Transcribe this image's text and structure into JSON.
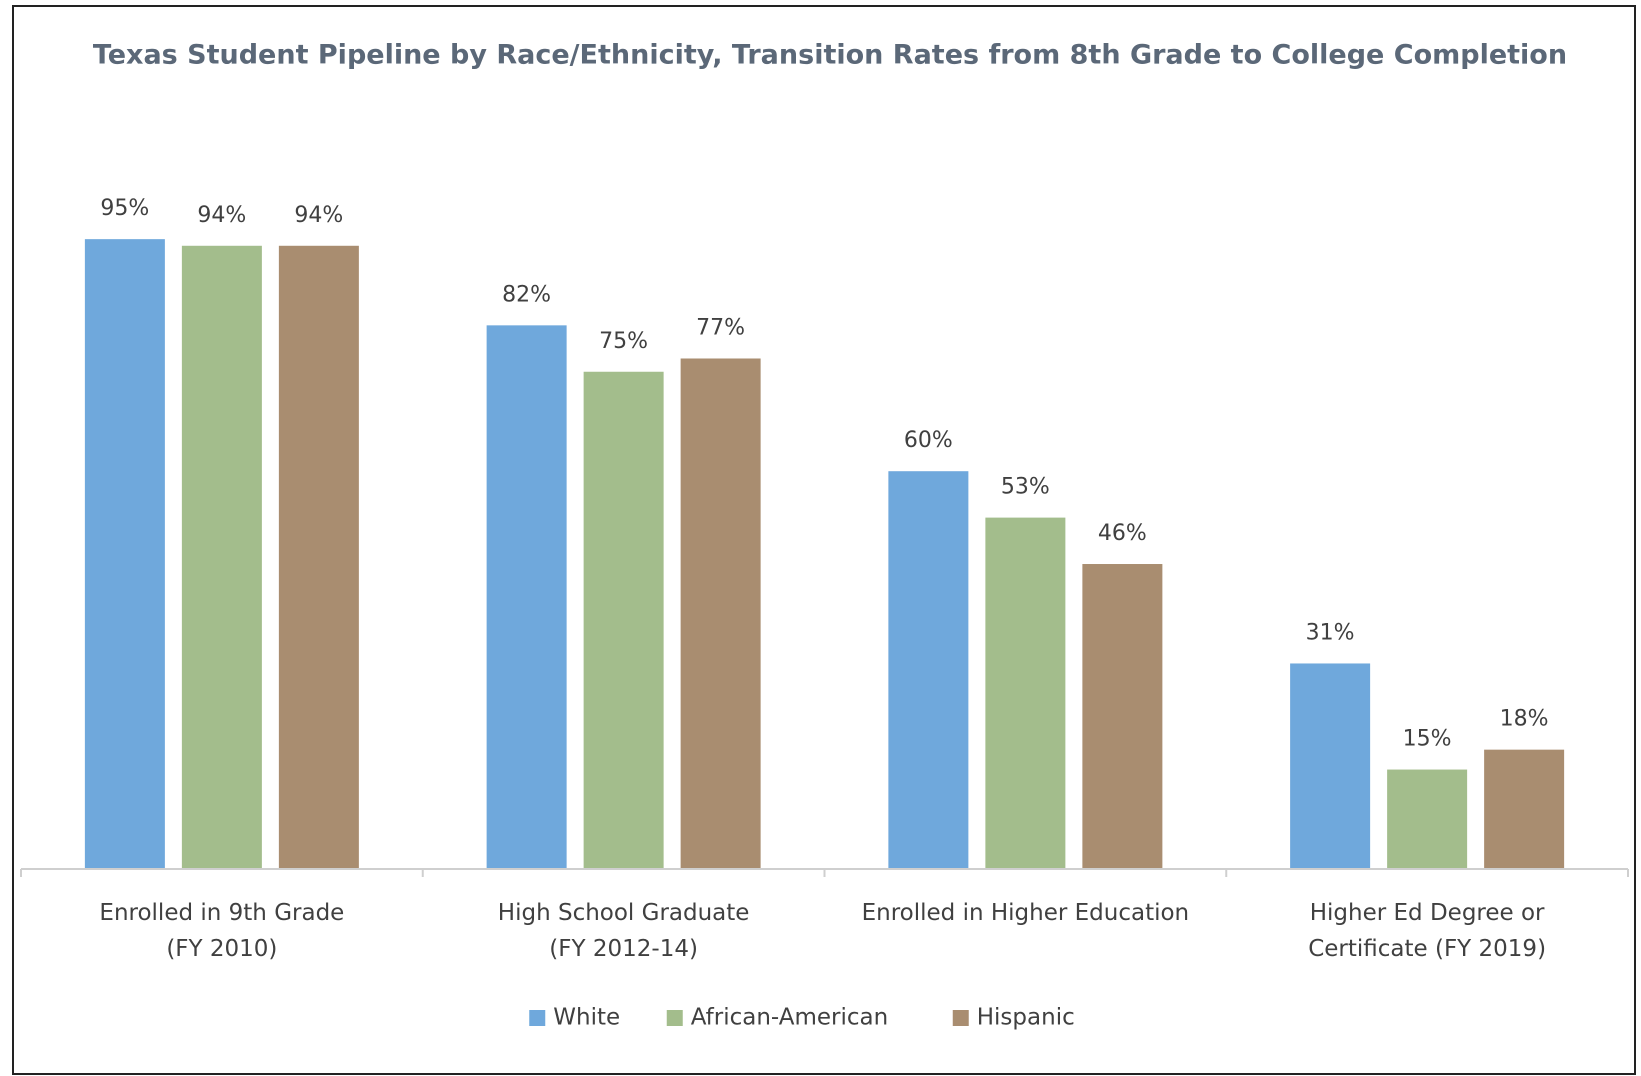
{
  "chart_data": {
    "type": "bar",
    "title": "Texas Student Pipeline by Race/Ethnicity, Transition Rates from 8th Grade to College Completion",
    "categories": [
      [
        "Enrolled in 9th Grade",
        "(FY 2010)"
      ],
      [
        "High School Graduate",
        "(FY 2012-14)"
      ],
      [
        "Enrolled in Higher Education"
      ],
      [
        "Higher Ed Degree or",
        "Certificate (FY 2019)"
      ]
    ],
    "series": [
      {
        "name": "White",
        "color": "#6fa8dc",
        "values": [
          95,
          82,
          60,
          31
        ],
        "value_labels": [
          "95%",
          "82%",
          "60%",
          "31%"
        ]
      },
      {
        "name": "African-American",
        "color": "#a3bd8c",
        "values": [
          94,
          75,
          53,
          15
        ],
        "value_labels": [
          "94%",
          "75%",
          "53%",
          "15%"
        ]
      },
      {
        "name": "Hispanic",
        "color": "#a98d70",
        "values": [
          94,
          77,
          46,
          18
        ],
        "value_labels": [
          "94%",
          "77%",
          "46%",
          "18%"
        ]
      }
    ],
    "ylim": [
      0,
      100
    ],
    "legend": "bottom"
  }
}
